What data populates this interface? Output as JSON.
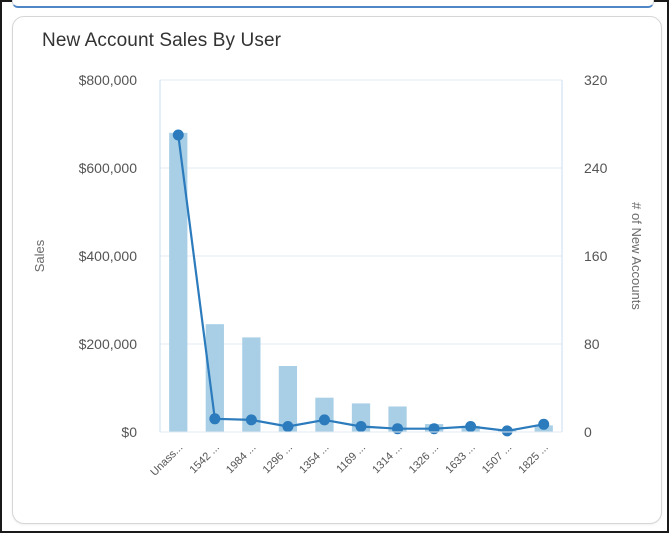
{
  "chart_data": {
    "type": "bar",
    "title": "New Account Sales By User",
    "categories": [
      "Unass...",
      "1542 ...",
      "1984 ...",
      "1296 ...",
      "1354 ...",
      "1169 ...",
      "1314 ...",
      "1326 ...",
      "1633 ...",
      "1507 ...",
      "1825 ..."
    ],
    "series": [
      {
        "type": "bar",
        "axis": "left",
        "color": "#a9cfe6",
        "values": [
          680000,
          245000,
          215000,
          150000,
          78000,
          65000,
          58000,
          18000,
          14000,
          6000,
          15000
        ]
      },
      {
        "type": "line",
        "axis": "right",
        "color": "#2b7bbd",
        "values": [
          270,
          12,
          11,
          5,
          11,
          5,
          3,
          3,
          5,
          1,
          7
        ]
      }
    ],
    "ylabel": "Sales",
    "y2label": "# of New Accounts",
    "ylim": [
      0,
      800000
    ],
    "y2lim": [
      0,
      320
    ],
    "yticks": [
      "$0",
      "$200,000",
      "$400,000",
      "$600,000",
      "$800,000"
    ],
    "y2ticks": [
      "0",
      "80",
      "160",
      "240",
      "320"
    ],
    "grid": true,
    "legend": "none"
  },
  "colors": {
    "bar": "#a9cfe6",
    "line": "#2b7bbd",
    "grid": "#e3eaf0",
    "plot_border": "#c9def0"
  }
}
